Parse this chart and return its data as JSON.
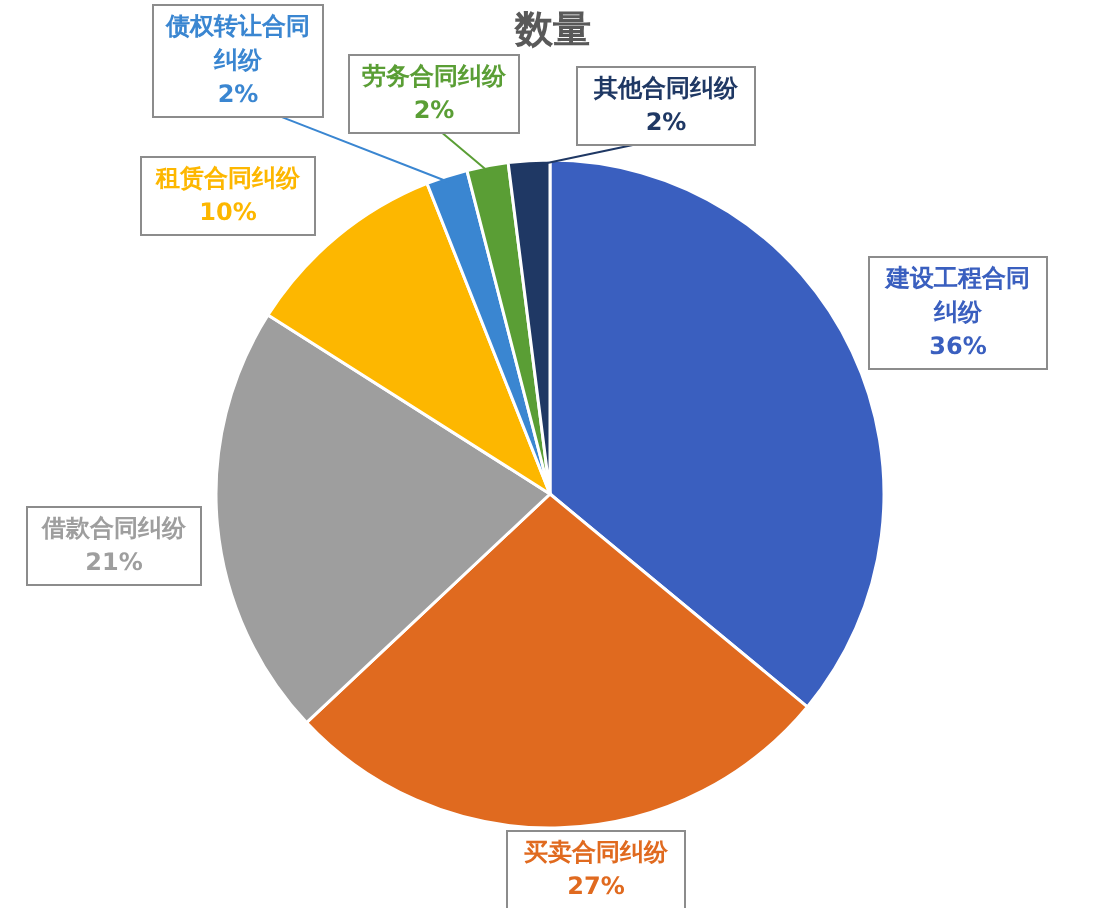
{
  "chart_data": {
    "type": "pie",
    "title": "数量",
    "categories": [
      "建设工程合同纠纷",
      "买卖合同纠纷",
      "借款合同纠纷",
      "租赁合同纠纷",
      "债权转让合同纠纷",
      "劳务合同纠纷",
      "其他合同纠纷"
    ],
    "values": [
      36,
      27,
      21,
      10,
      2,
      2,
      2
    ],
    "colors": [
      "#3a5fbf",
      "#e06a1f",
      "#9e9e9e",
      "#fdb700",
      "#3a86d1",
      "#5a9e35",
      "#1f3864"
    ],
    "value_labels": [
      "36%",
      "27%",
      "21%",
      "10%",
      "2%",
      "2%",
      "2%"
    ]
  }
}
